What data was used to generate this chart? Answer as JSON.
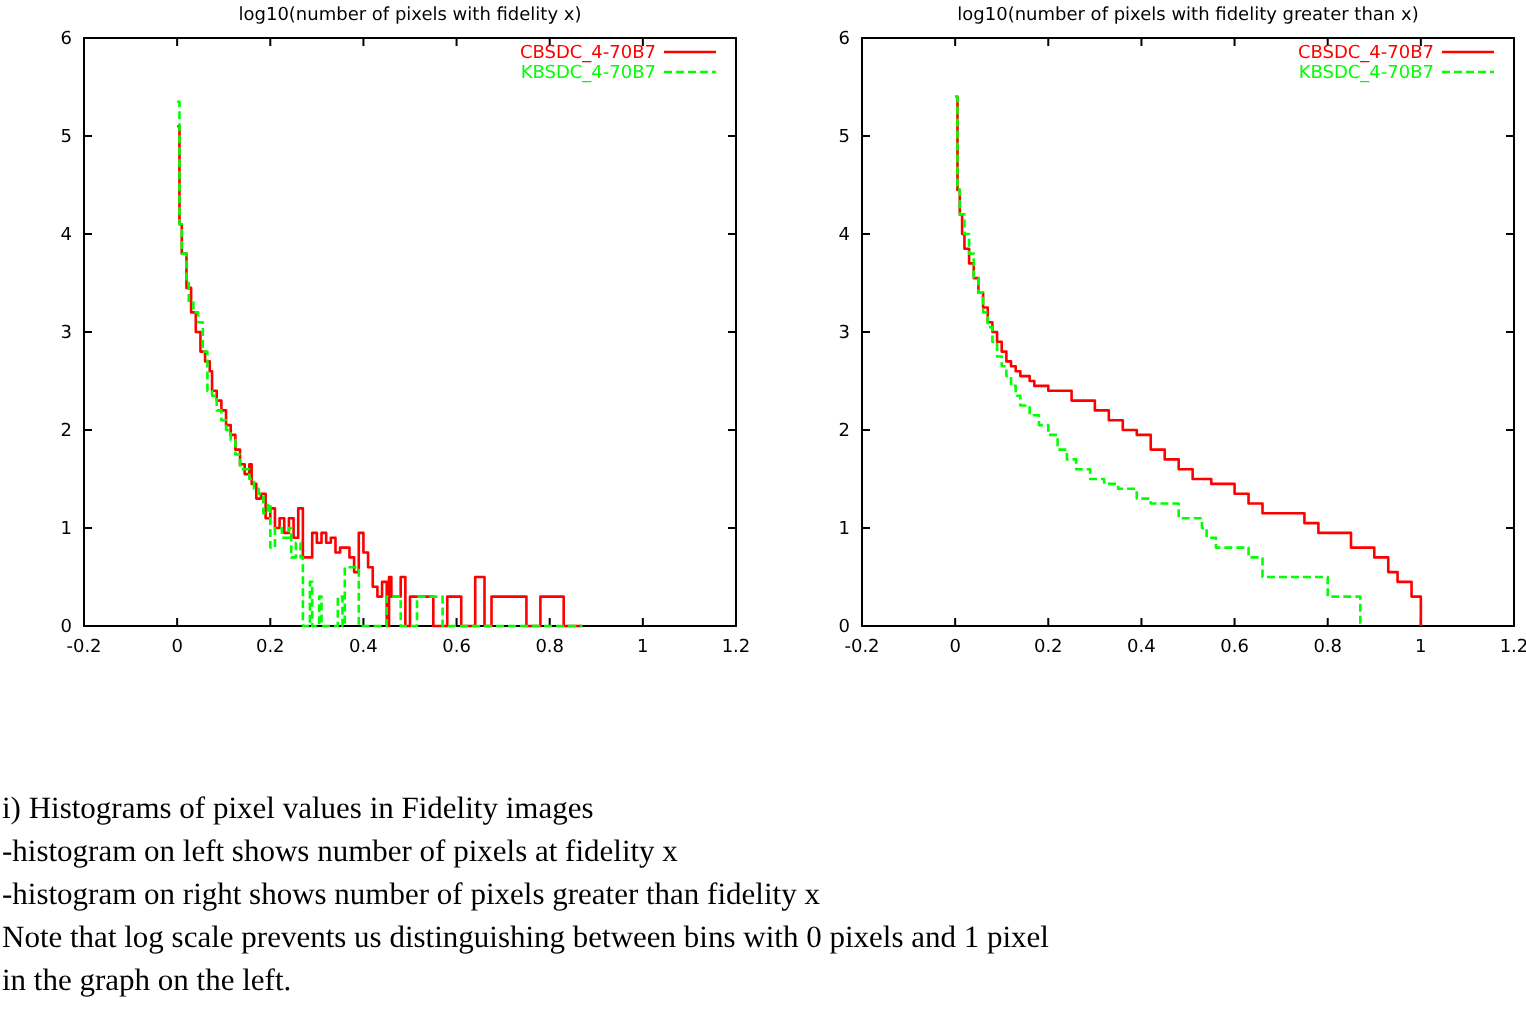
{
  "chart_data": [
    {
      "type": "step",
      "title": "log10(number of pixels with fidelity x)",
      "xlim": [
        -0.2,
        1.2
      ],
      "xticks": [
        -0.2,
        0,
        0.2,
        0.4,
        0.6,
        0.8,
        1,
        1.2
      ],
      "ylim": [
        0,
        6
      ],
      "yticks": [
        0,
        1,
        2,
        3,
        4,
        5,
        6
      ],
      "grid": false,
      "legend": "top right",
      "series": [
        {
          "name": "CBSDC_4-70B7",
          "color": "#ff0000",
          "line_style": "solid",
          "x": [
            0,
            0.005,
            0.01,
            0.02,
            0.03,
            0.04,
            0.05,
            0.06,
            0.07,
            0.075,
            0.085,
            0.095,
            0.105,
            0.115,
            0.125,
            0.135,
            0.145,
            0.155,
            0.16,
            0.17,
            0.18,
            0.19,
            0.2,
            0.21,
            0.22,
            0.23,
            0.24,
            0.25,
            0.26,
            0.27,
            0.29,
            0.3,
            0.31,
            0.32,
            0.33,
            0.34,
            0.35,
            0.37,
            0.38,
            0.39,
            0.4,
            0.41,
            0.42,
            0.43,
            0.44,
            0.45,
            0.455,
            0.46,
            0.48,
            0.49,
            0.5,
            0.55,
            0.58,
            0.61,
            0.64,
            0.66,
            0.675,
            0.75,
            0.78,
            0.83,
            0.87
          ],
          "values": [
            5.1,
            4.1,
            3.8,
            3.45,
            3.2,
            3.0,
            2.8,
            2.7,
            2.6,
            2.4,
            2.3,
            2.2,
            2.05,
            1.95,
            1.8,
            1.65,
            1.55,
            1.65,
            1.45,
            1.3,
            1.35,
            1.1,
            1.2,
            1.0,
            1.1,
            0.95,
            1.1,
            0.9,
            1.2,
            0.7,
            0.95,
            0.85,
            0.95,
            0.85,
            0.9,
            0.75,
            0.8,
            0.7,
            0.55,
            0.95,
            0.75,
            0.6,
            0.4,
            0.3,
            0.45,
            0,
            0.5,
            0.3,
            0.5,
            0,
            0.3,
            0,
            0.3,
            0,
            0.5,
            0,
            0.3,
            0,
            0.3,
            0,
            0
          ]
        },
        {
          "name": "KBSDC_4-70B7",
          "color": "#00ff00",
          "line_style": "dashed",
          "x": [
            0,
            0.005,
            0.01,
            0.02,
            0.025,
            0.035,
            0.045,
            0.055,
            0.065,
            0.075,
            0.085,
            0.095,
            0.105,
            0.115,
            0.125,
            0.135,
            0.155,
            0.165,
            0.175,
            0.185,
            0.195,
            0.2,
            0.21,
            0.225,
            0.24,
            0.245,
            0.255,
            0.265,
            0.27,
            0.285,
            0.29,
            0.305,
            0.31,
            0.345,
            0.355,
            0.36,
            0.39,
            0.45,
            0.48,
            0.515,
            0.57,
            0.87
          ],
          "values": [
            5.35,
            4.1,
            3.8,
            3.5,
            3.3,
            3.2,
            3.1,
            2.8,
            2.4,
            2.35,
            2.2,
            2.1,
            2.0,
            1.9,
            1.75,
            1.6,
            1.5,
            1.4,
            1.35,
            1.15,
            1.25,
            0.8,
            1.0,
            0.9,
            1.0,
            0.7,
            0.85,
            0.7,
            0,
            0.45,
            0,
            0.3,
            0,
            0.3,
            0,
            0.6,
            0,
            0.3,
            0,
            0.3,
            0,
            0
          ]
        }
      ]
    },
    {
      "type": "step",
      "title": "log10(number of pixels with fidelity greater than x)",
      "xlim": [
        -0.2,
        1.2
      ],
      "xticks": [
        -0.2,
        0,
        0.2,
        0.4,
        0.6,
        0.8,
        1,
        1.2
      ],
      "ylim": [
        0,
        6
      ],
      "yticks": [
        0,
        1,
        2,
        3,
        4,
        5,
        6
      ],
      "grid": false,
      "legend": "top right",
      "series": [
        {
          "name": "CBSDC_4-70B7",
          "color": "#ff0000",
          "line_style": "solid",
          "x": [
            0,
            0.005,
            0.01,
            0.015,
            0.02,
            0.03,
            0.04,
            0.05,
            0.06,
            0.07,
            0.08,
            0.09,
            0.1,
            0.11,
            0.12,
            0.13,
            0.14,
            0.16,
            0.17,
            0.2,
            0.25,
            0.3,
            0.33,
            0.36,
            0.39,
            0.42,
            0.45,
            0.48,
            0.51,
            0.55,
            0.6,
            0.63,
            0.66,
            0.75,
            0.78,
            0.85,
            0.9,
            0.93,
            0.95,
            0.98,
            1.0
          ],
          "values": [
            5.4,
            4.45,
            4.2,
            4.0,
            3.85,
            3.7,
            3.55,
            3.4,
            3.25,
            3.1,
            3.0,
            2.9,
            2.8,
            2.7,
            2.65,
            2.6,
            2.55,
            2.5,
            2.45,
            2.4,
            2.3,
            2.2,
            2.1,
            2.0,
            1.95,
            1.8,
            1.7,
            1.6,
            1.5,
            1.45,
            1.35,
            1.25,
            1.15,
            1.05,
            0.95,
            0.8,
            0.7,
            0.55,
            0.45,
            0.3,
            0
          ]
        },
        {
          "name": "KBSDC_4-70B7",
          "color": "#00ff00",
          "line_style": "dashed",
          "x": [
            0,
            0.005,
            0.01,
            0.02,
            0.03,
            0.04,
            0.05,
            0.06,
            0.07,
            0.08,
            0.09,
            0.1,
            0.11,
            0.12,
            0.13,
            0.14,
            0.16,
            0.18,
            0.2,
            0.22,
            0.24,
            0.26,
            0.29,
            0.32,
            0.35,
            0.39,
            0.42,
            0.48,
            0.53,
            0.54,
            0.56,
            0.63,
            0.66,
            0.8,
            0.87
          ],
          "values": [
            5.4,
            4.45,
            4.2,
            4.0,
            3.8,
            3.55,
            3.4,
            3.2,
            3.05,
            2.9,
            2.75,
            2.65,
            2.55,
            2.45,
            2.35,
            2.25,
            2.15,
            2.05,
            1.95,
            1.8,
            1.7,
            1.6,
            1.5,
            1.45,
            1.4,
            1.3,
            1.25,
            1.1,
            1.0,
            0.9,
            0.8,
            0.7,
            0.5,
            0.3,
            0
          ]
        }
      ]
    },
    {
      "type": "other",
      "annotations": [
        "i) Histograms of pixel values in Fidelity images",
        "-histogram on left shows number of pixels at fidelity x",
        "-histogram on right shows number of pixels greater than fidelity x",
        "Note that log scale prevents us distinguishing between bins with 0 pixels and 1 pixel",
        "in the graph on the left."
      ]
    }
  ]
}
